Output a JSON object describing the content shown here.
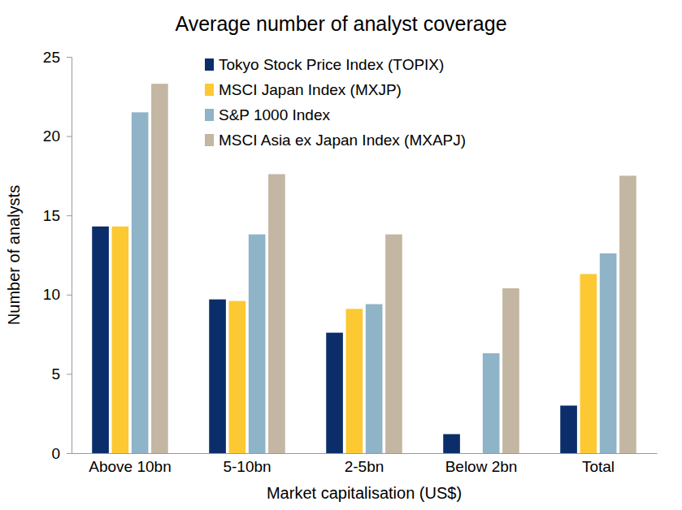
{
  "chart_data": {
    "type": "bar",
    "title": "Average number of analyst coverage",
    "x_label": "Market capitalisation (US$)",
    "y_label": "Number of analysts",
    "categories": [
      "Above 10bn",
      "5-10bn",
      "2-5bn",
      "Below 2bn",
      "Total"
    ],
    "series": [
      {
        "name": "Tokyo Stock Price Index (TOPIX)",
        "color": "#0b2e6b",
        "values": [
          14.3,
          9.7,
          7.6,
          1.2,
          3.0
        ]
      },
      {
        "name": "MSCI Japan Index (MXJP)",
        "color": "#fcc933",
        "values": [
          14.3,
          9.6,
          9.1,
          null,
          11.3
        ]
      },
      {
        "name": "S&P 1000 Index",
        "color": "#8fb3c7",
        "values": [
          21.5,
          13.8,
          9.4,
          6.3,
          12.6
        ]
      },
      {
        "name": "MSCI Asia ex Japan Index (MXAPJ)",
        "color": "#c3b6a2",
        "values": [
          23.3,
          17.6,
          13.8,
          10.4,
          17.5
        ]
      }
    ],
    "ylim": [
      0,
      25
    ],
    "yticks": [
      0,
      5,
      10,
      15,
      20,
      25
    ],
    "grid": false,
    "legend": "top"
  }
}
